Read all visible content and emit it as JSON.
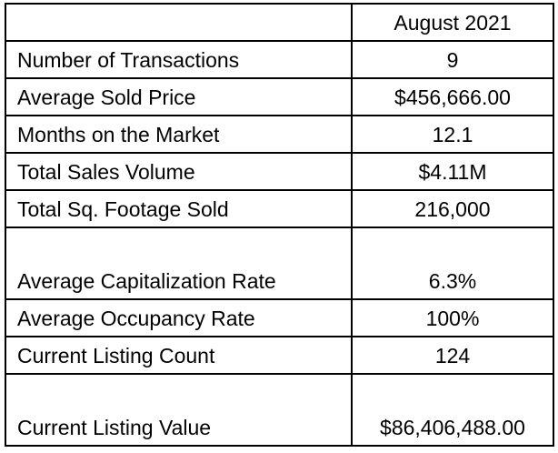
{
  "table": {
    "header": {
      "corner": "",
      "period": "August 2021"
    },
    "rows": [
      {
        "label": "Number of Transactions",
        "value": "9"
      },
      {
        "label": "Average Sold Price",
        "value": "$456,666.00"
      },
      {
        "label": "Months on the Market",
        "value": "12.1"
      },
      {
        "label": "Total Sales Volume",
        "value": "$4.11M"
      },
      {
        "label": "Total Sq. Footage Sold",
        "value": "216,000"
      },
      {
        "label": "Average Capitalization Rate",
        "value": "6.3%"
      },
      {
        "label": "Average Occupancy Rate",
        "value": "100%"
      },
      {
        "label": "Current Listing Count",
        "value": "124"
      },
      {
        "label": "Current Listing Value",
        "value": "$86,406,488.00"
      }
    ]
  }
}
